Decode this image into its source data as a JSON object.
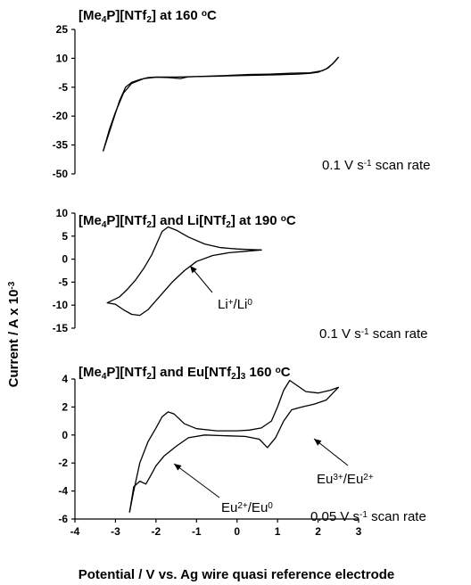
{
  "chart_data": [
    {
      "type": "line",
      "title_parts": [
        "[Me",
        "4",
        "P][NTf",
        "2",
        "] at 160 ",
        "o",
        "C"
      ],
      "ylim": [
        -50,
        25
      ],
      "yticks": [
        25,
        10,
        -5,
        -20,
        -35,
        -50
      ],
      "xlim": [
        -4,
        3
      ],
      "annotations": [
        {
          "parts": [
            "0.1 V s",
            "-1",
            " scan rate"
          ]
        }
      ],
      "series": [
        {
          "points": [
            [
              -3.3,
              -38
            ],
            [
              -3.1,
              -25
            ],
            [
              -2.9,
              -12
            ],
            [
              -2.75,
              -5
            ],
            [
              -2.6,
              -2.5
            ],
            [
              -2.4,
              -1
            ],
            [
              -2.2,
              0
            ],
            [
              -2.0,
              0.3
            ],
            [
              -1.5,
              0.3
            ],
            [
              -1.0,
              0.5
            ],
            [
              -0.5,
              0.7
            ],
            [
              0,
              1
            ],
            [
              0.5,
              1.2
            ],
            [
              1.0,
              1.5
            ],
            [
              1.5,
              1.8
            ],
            [
              1.8,
              2.2
            ],
            [
              2.0,
              2.8
            ],
            [
              2.2,
              4.5
            ],
            [
              2.35,
              7
            ],
            [
              2.5,
              10.5
            ]
          ]
        },
        {
          "points": [
            [
              2.5,
              10.5
            ],
            [
              2.4,
              8
            ],
            [
              2.25,
              5
            ],
            [
              2.1,
              3.5
            ],
            [
              1.8,
              2.5
            ],
            [
              1.3,
              2.2
            ],
            [
              0.8,
              1.8
            ],
            [
              0.3,
              1.6
            ],
            [
              -0.3,
              1.0
            ],
            [
              -0.8,
              0.7
            ],
            [
              -1.2,
              0.4
            ],
            [
              -1.4,
              -0.5
            ],
            [
              -1.7,
              0
            ],
            [
              -2.0,
              0.2
            ],
            [
              -2.3,
              -0.5
            ],
            [
              -2.6,
              -3
            ],
            [
              -2.8,
              -8
            ],
            [
              -3.0,
              -18
            ],
            [
              -3.15,
              -27
            ],
            [
              -3.3,
              -38
            ]
          ]
        }
      ]
    },
    {
      "type": "line",
      "title_parts": [
        "[Me",
        "4",
        "P][NTf",
        "2",
        "] and Li[NTf",
        "2",
        "] at 190 ",
        "o",
        "C"
      ],
      "ylim": [
        -15,
        10
      ],
      "yticks": [
        10,
        5,
        0,
        -5,
        -10,
        -15
      ],
      "xlim": [
        -4,
        3
      ],
      "annotations": [
        {
          "parts": [
            "Li",
            "+",
            "/Li",
            "0"
          ]
        },
        {
          "parts": [
            "0.1 V s",
            "-1",
            " scan rate"
          ]
        }
      ],
      "series": [
        {
          "points": [
            [
              -3.2,
              -9.5
            ],
            [
              -2.9,
              -8.2
            ],
            [
              -2.7,
              -6.5
            ],
            [
              -2.5,
              -4.5
            ],
            [
              -2.3,
              -2
            ],
            [
              -2.1,
              1
            ],
            [
              -1.95,
              4
            ],
            [
              -1.85,
              6
            ],
            [
              -1.7,
              7
            ],
            [
              -1.5,
              6.3
            ],
            [
              -1.2,
              4.8
            ],
            [
              -0.8,
              3.3
            ],
            [
              -0.4,
              2.5
            ],
            [
              0,
              2.2
            ],
            [
              0.3,
              2.1
            ],
            [
              0.6,
              2.0
            ]
          ]
        },
        {
          "points": [
            [
              0.6,
              2.0
            ],
            [
              0.2,
              1.7
            ],
            [
              -0.2,
              1.4
            ],
            [
              -0.6,
              0.8
            ],
            [
              -1.0,
              -0.5
            ],
            [
              -1.3,
              -2.5
            ],
            [
              -1.6,
              -5
            ],
            [
              -1.9,
              -8
            ],
            [
              -2.2,
              -11
            ],
            [
              -2.4,
              -12.2
            ],
            [
              -2.6,
              -12
            ],
            [
              -2.8,
              -11
            ],
            [
              -3.0,
              -9.8
            ],
            [
              -3.2,
              -9.5
            ]
          ]
        }
      ]
    },
    {
      "type": "line",
      "title_parts": [
        "[Me",
        "4",
        "P][NTf",
        "2",
        "] and Eu[NTf",
        "2",
        "]",
        "3",
        " 160 ",
        "o",
        "C"
      ],
      "ylim": [
        -6,
        4
      ],
      "yticks": [
        4,
        2,
        0,
        -2,
        -4,
        -6
      ],
      "xlim": [
        -4,
        3
      ],
      "xticks": [
        -4,
        -3,
        -2,
        -1,
        0,
        1,
        2,
        3
      ],
      "xlabel": "Potential / V vs. Ag wire quasi reference electrode",
      "ylabel": "Current / A x 10^-3",
      "annotations": [
        {
          "parts": [
            "Eu",
            "2+",
            "/Eu",
            "0"
          ]
        },
        {
          "parts": [
            "Eu",
            "3+",
            "/Eu",
            "2+"
          ]
        },
        {
          "parts": [
            "0.05 V s",
            "-1",
            " scan rate"
          ]
        }
      ],
      "series": [
        {
          "points": [
            [
              -2.65,
              -5.5
            ],
            [
              -2.55,
              -4
            ],
            [
              -2.4,
              -2
            ],
            [
              -2.2,
              -0.5
            ],
            [
              -2.0,
              0.5
            ],
            [
              -1.85,
              1.3
            ],
            [
              -1.7,
              1.65
            ],
            [
              -1.55,
              1.5
            ],
            [
              -1.3,
              0.8
            ],
            [
              -1.0,
              0.45
            ],
            [
              -0.5,
              0.3
            ],
            [
              0,
              0.3
            ],
            [
              0.3,
              0.35
            ],
            [
              0.6,
              0.5
            ],
            [
              0.85,
              1.0
            ],
            [
              1.0,
              2.0
            ],
            [
              1.15,
              3.2
            ],
            [
              1.3,
              3.9
            ],
            [
              1.5,
              3.5
            ],
            [
              1.7,
              3.1
            ],
            [
              2.0,
              3.0
            ],
            [
              2.3,
              3.2
            ],
            [
              2.5,
              3.4
            ]
          ]
        },
        {
          "points": [
            [
              2.5,
              3.4
            ],
            [
              2.2,
              2.5
            ],
            [
              1.9,
              2.2
            ],
            [
              1.6,
              2.0
            ],
            [
              1.35,
              1.8
            ],
            [
              1.15,
              1.0
            ],
            [
              0.95,
              -0.2
            ],
            [
              0.75,
              -0.9
            ],
            [
              0.55,
              -0.3
            ],
            [
              0.2,
              -0.1
            ],
            [
              -0.3,
              -0.05
            ],
            [
              -0.8,
              0
            ],
            [
              -1.2,
              -0.2
            ],
            [
              -1.5,
              -0.8
            ],
            [
              -1.8,
              -1.5
            ],
            [
              -2.0,
              -2.2
            ],
            [
              -2.15,
              -3.0
            ],
            [
              -2.25,
              -3.5
            ],
            [
              -2.4,
              -3.3
            ],
            [
              -2.55,
              -3.7
            ],
            [
              -2.65,
              -5.5
            ]
          ]
        }
      ]
    }
  ]
}
